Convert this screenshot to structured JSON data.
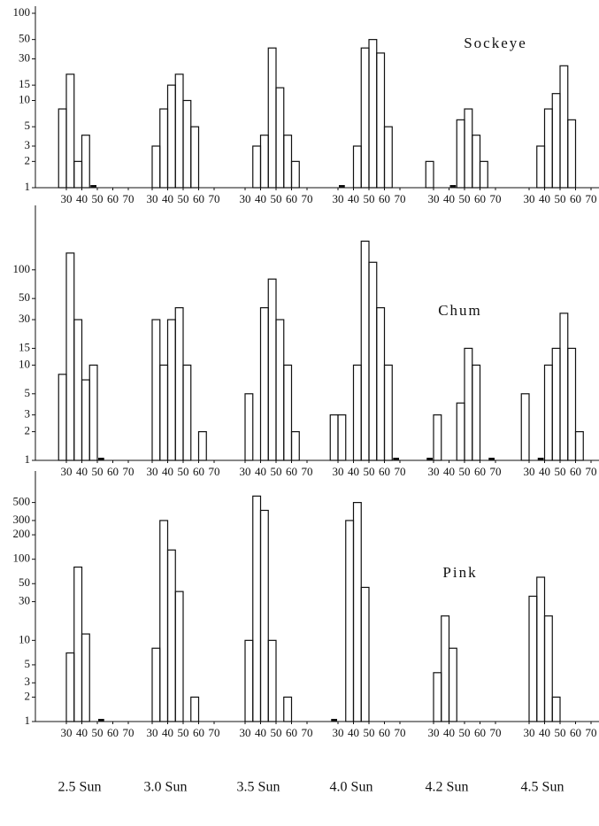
{
  "chart_data": [
    {
      "type": "histogram",
      "title": "Sockeye",
      "log_y": true,
      "ylim": [
        1,
        100
      ],
      "yticks": [
        1,
        2,
        3,
        5,
        10,
        15,
        30,
        50,
        100
      ],
      "xticks": [
        30,
        40,
        50,
        60,
        70
      ],
      "bins": [
        20,
        25,
        30,
        35,
        40,
        45,
        50,
        55,
        60,
        65,
        70,
        75
      ],
      "color": "#111111",
      "series": [
        {
          "values": [
            0,
            8,
            20,
            2,
            4,
            1,
            0,
            0,
            0,
            0,
            0
          ]
        },
        {
          "values": [
            0,
            0,
            3,
            8,
            15,
            20,
            10,
            5,
            0,
            0,
            0
          ]
        },
        {
          "values": [
            0,
            0,
            0,
            3,
            4,
            40,
            14,
            4,
            2,
            0,
            0
          ]
        },
        {
          "values": [
            0,
            0,
            1,
            0,
            3,
            40,
            50,
            35,
            5,
            0,
            0
          ]
        },
        {
          "values": [
            0,
            2,
            0,
            0,
            1,
            6,
            8,
            4,
            2,
            0,
            0
          ]
        },
        {
          "values": [
            0,
            0,
            0,
            3,
            8,
            12,
            25,
            6,
            0,
            0,
            0
          ]
        }
      ]
    },
    {
      "type": "histogram",
      "title": "Chum",
      "log_y": true,
      "ylim": [
        1,
        400
      ],
      "yticks": [
        1,
        2,
        3,
        5,
        10,
        15,
        30,
        50,
        100
      ],
      "xticks": [
        30,
        40,
        50,
        60,
        70
      ],
      "bins": [
        20,
        25,
        30,
        35,
        40,
        45,
        50,
        55,
        60,
        65,
        70,
        75
      ],
      "color": "#111111",
      "series": [
        {
          "values": [
            0,
            8,
            150,
            30,
            7,
            10,
            1,
            0,
            0,
            0,
            0
          ]
        },
        {
          "values": [
            0,
            0,
            30,
            10,
            30,
            40,
            10,
            0,
            2,
            0,
            0
          ]
        },
        {
          "values": [
            0,
            0,
            5,
            0,
            40,
            80,
            30,
            10,
            2,
            0,
            0
          ]
        },
        {
          "values": [
            0,
            3,
            3,
            0,
            10,
            200,
            120,
            40,
            10,
            1,
            0
          ]
        },
        {
          "values": [
            0,
            1,
            3,
            0,
            0,
            4,
            15,
            10,
            0,
            1,
            0
          ]
        },
        {
          "values": [
            0,
            5,
            0,
            1,
            10,
            15,
            35,
            15,
            2,
            0,
            0
          ]
        }
      ]
    },
    {
      "type": "histogram",
      "title": "Pink",
      "log_y": true,
      "ylim": [
        1,
        1000
      ],
      "yticks": [
        1,
        2,
        3,
        5,
        10,
        30,
        50,
        100,
        200,
        300,
        500
      ],
      "xticks": [
        30,
        40,
        50,
        60,
        70
      ],
      "bins": [
        20,
        25,
        30,
        35,
        40,
        45,
        50,
        55,
        60,
        65,
        70,
        75
      ],
      "color": "#111111",
      "series": [
        {
          "values": [
            0,
            0,
            7,
            80,
            12,
            0,
            1,
            0,
            0,
            0,
            0
          ]
        },
        {
          "values": [
            0,
            0,
            8,
            300,
            130,
            40,
            0,
            2,
            0,
            0,
            0
          ]
        },
        {
          "values": [
            0,
            0,
            10,
            600,
            400,
            10,
            0,
            2,
            0,
            0,
            0
          ]
        },
        {
          "values": [
            0,
            1,
            0,
            300,
            500,
            45,
            0,
            0,
            0,
            0,
            0
          ]
        },
        {
          "values": [
            0,
            0,
            4,
            20,
            8,
            0,
            0,
            0,
            0,
            0,
            0
          ]
        },
        {
          "values": [
            0,
            0,
            35,
            60,
            20,
            2,
            0,
            0,
            0,
            0,
            0
          ]
        }
      ]
    }
  ],
  "panel_labels": [
    "2.5 Sun",
    "3.0 Sun",
    "3.5 Sun",
    "4.0 Sun",
    "4.2 Sun",
    "4.5 Sun"
  ]
}
